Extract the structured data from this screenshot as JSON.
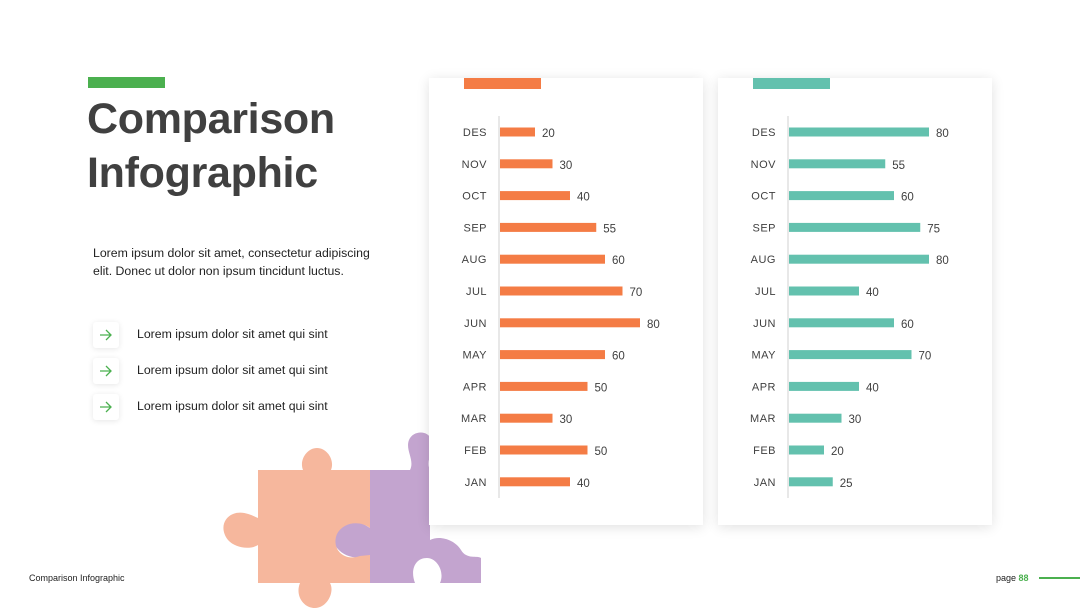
{
  "colors": {
    "green": "#4bb04f",
    "orange": "#f47c45",
    "teal": "#63c1ae",
    "puzzle_peach": "#f6b79d",
    "puzzle_purple": "#c3a4cf"
  },
  "title": "Comparison\nInfographic",
  "description": "Lorem ipsum dolor sit amet, consectetur adipiscing elit. Donec ut dolor non ipsum tincidunt luctus.",
  "bullets": [
    {
      "icon": "arrow-right-icon",
      "text": "Lorem ipsum dolor sit amet qui sint"
    },
    {
      "icon": "arrow-right-icon",
      "text": "Lorem ipsum dolor sit amet qui sint"
    },
    {
      "icon": "arrow-right-icon",
      "text": "Lorem ipsum dolor sit amet qui sint"
    }
  ],
  "footer": {
    "left": "Comparison Infographic",
    "page_prefix": "page",
    "page_number": "88"
  },
  "chart_data": [
    {
      "type": "bar",
      "orientation": "horizontal",
      "color": "#f47c45",
      "categories": [
        "DES",
        "NOV",
        "OCT",
        "SEP",
        "AUG",
        "JUL",
        "JUN",
        "MAY",
        "APR",
        "MAR",
        "FEB",
        "JAN"
      ],
      "values": [
        20,
        30,
        40,
        55,
        60,
        70,
        80,
        60,
        50,
        30,
        50,
        40
      ],
      "xlim": [
        0,
        80
      ],
      "data_labels": true,
      "grid": false
    },
    {
      "type": "bar",
      "orientation": "horizontal",
      "color": "#63c1ae",
      "categories": [
        "DES",
        "NOV",
        "OCT",
        "SEP",
        "AUG",
        "JUL",
        "JUN",
        "MAY",
        "APR",
        "MAR",
        "FEB",
        "JAN"
      ],
      "values": [
        80,
        55,
        60,
        75,
        80,
        40,
        60,
        70,
        40,
        30,
        20,
        25
      ],
      "xlim": [
        0,
        80
      ],
      "data_labels": true,
      "grid": false
    }
  ]
}
